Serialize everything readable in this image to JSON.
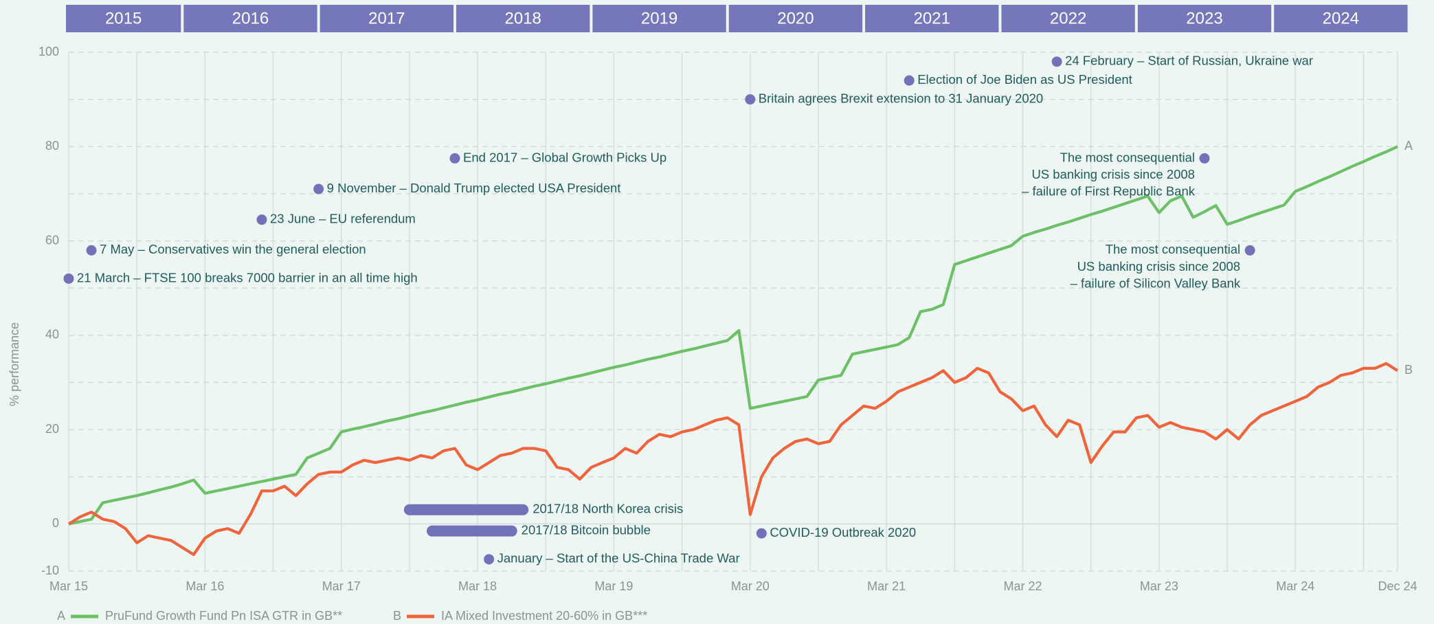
{
  "chart_data": {
    "type": "line",
    "y_label": "% performance",
    "year_bands": [
      "2015",
      "2016",
      "2017",
      "2018",
      "2019",
      "2020",
      "2021",
      "2022",
      "2023",
      "2024"
    ],
    "x": [
      "2015-03",
      "2015-04",
      "2015-05",
      "2015-06",
      "2015-07",
      "2015-08",
      "2015-09",
      "2015-10",
      "2015-11",
      "2015-12",
      "2016-01",
      "2016-02",
      "2016-03",
      "2016-04",
      "2016-05",
      "2016-06",
      "2016-07",
      "2016-08",
      "2016-09",
      "2016-10",
      "2016-11",
      "2016-12",
      "2017-01",
      "2017-02",
      "2017-03",
      "2017-04",
      "2017-05",
      "2017-06",
      "2017-07",
      "2017-08",
      "2017-09",
      "2017-10",
      "2017-11",
      "2017-12",
      "2018-01",
      "2018-02",
      "2018-03",
      "2018-04",
      "2018-05",
      "2018-06",
      "2018-07",
      "2018-08",
      "2018-09",
      "2018-10",
      "2018-11",
      "2018-12",
      "2019-01",
      "2019-02",
      "2019-03",
      "2019-04",
      "2019-05",
      "2019-06",
      "2019-07",
      "2019-08",
      "2019-09",
      "2019-10",
      "2019-11",
      "2019-12",
      "2020-01",
      "2020-02",
      "2020-03",
      "2020-04",
      "2020-05",
      "2020-06",
      "2020-07",
      "2020-08",
      "2020-09",
      "2020-10",
      "2020-11",
      "2020-12",
      "2021-01",
      "2021-02",
      "2021-03",
      "2021-04",
      "2021-05",
      "2021-06",
      "2021-07",
      "2021-08",
      "2021-09",
      "2021-10",
      "2021-11",
      "2021-12",
      "2022-01",
      "2022-02",
      "2022-03",
      "2022-04",
      "2022-05",
      "2022-06",
      "2022-07",
      "2022-08",
      "2022-09",
      "2022-10",
      "2022-11",
      "2022-12",
      "2023-01",
      "2023-02",
      "2023-03",
      "2023-04",
      "2023-05",
      "2023-06",
      "2023-07",
      "2023-08",
      "2023-09",
      "2023-10",
      "2023-11",
      "2023-12",
      "2024-01",
      "2024-02",
      "2024-03",
      "2024-04",
      "2024-05",
      "2024-06",
      "2024-07",
      "2024-08",
      "2024-09",
      "2024-10",
      "2024-11",
      "2024-12"
    ],
    "series": [
      {
        "label": "A",
        "name": "PruFund Growth Fund Pn ISA GTR in GB**",
        "color": "#6cc066",
        "values": [
          0,
          0.5,
          1,
          4.5,
          5,
          5.5,
          6,
          6.6,
          7.2,
          7.8,
          8.5,
          9.3,
          6.5,
          7,
          7.5,
          8,
          8.5,
          9,
          9.5,
          10,
          10.5,
          14,
          15,
          16,
          19.5,
          20.1,
          20.6,
          21.2,
          21.8,
          22.3,
          22.9,
          23.5,
          24.0,
          24.6,
          25.2,
          25.8,
          26.3,
          26.9,
          27.5,
          28.0,
          28.6,
          29.2,
          29.7,
          30.3,
          30.9,
          31.4,
          32.0,
          32.6,
          33.2,
          33.7,
          34.3,
          34.9,
          35.4,
          36.0,
          36.6,
          37.1,
          37.7,
          38.3,
          38.9,
          41,
          24.5,
          25,
          25.5,
          26,
          26.5,
          27,
          30.5,
          31,
          31.5,
          36,
          36.5,
          37,
          37.5,
          38,
          39.5,
          45,
          45.5,
          46.5,
          55,
          55.8,
          56.6,
          57.4,
          58.2,
          59,
          61,
          61.8,
          62.5,
          63.3,
          64,
          64.8,
          65.6,
          66.3,
          67.1,
          67.9,
          68.7,
          69.5,
          66,
          68.5,
          69.5,
          65,
          66.2,
          67.5,
          63.5,
          64.3,
          65.2,
          66,
          66.8,
          67.6,
          70.5,
          71.5,
          72.6,
          73.6,
          74.7,
          75.8,
          76.8,
          77.9,
          78.9,
          80
        ]
      },
      {
        "label": "B",
        "name": "IA Mixed Investment 20-60% in GB***",
        "color": "#f0643c",
        "values": [
          0,
          1.5,
          2.5,
          1,
          0.5,
          -1,
          -4,
          -2.5,
          -3,
          -3.5,
          -5,
          -6.5,
          -3,
          -1.5,
          -1,
          -2,
          2,
          7,
          7,
          8,
          6,
          8.5,
          10.5,
          11,
          11,
          12.5,
          13.5,
          13,
          13.5,
          14,
          13.5,
          14.5,
          14,
          15.5,
          16,
          12.5,
          11.5,
          13,
          14.5,
          15,
          16,
          16,
          15.5,
          12,
          11.5,
          9.5,
          12,
          13,
          14,
          16,
          15,
          17.5,
          19,
          18.5,
          19.5,
          20,
          21,
          22,
          22.5,
          21,
          2,
          10,
          14,
          16,
          17.5,
          18,
          17,
          17.5,
          21,
          23,
          25,
          24.5,
          26,
          28,
          29,
          30,
          31,
          32.5,
          30,
          31,
          33,
          32,
          28,
          26.5,
          24,
          25,
          21,
          18.5,
          22,
          21,
          13,
          16.5,
          19.5,
          19.5,
          22.5,
          23,
          20.5,
          21.5,
          20.5,
          20,
          19.5,
          18,
          20,
          18,
          21,
          23,
          24,
          25,
          26,
          27,
          29,
          30,
          31.5,
          32,
          33,
          33,
          34,
          32.5
        ]
      }
    ],
    "xlim": [
      "2015-03",
      "2024-12"
    ],
    "xticks": [
      {
        "value": "2015-03",
        "label": "Mar 15"
      },
      {
        "value": "2016-03",
        "label": "Mar 16"
      },
      {
        "value": "2017-03",
        "label": "Mar 17"
      },
      {
        "value": "2018-03",
        "label": "Mar 18"
      },
      {
        "value": "2019-03",
        "label": "Mar 19"
      },
      {
        "value": "2020-03",
        "label": "Mar 20"
      },
      {
        "value": "2021-03",
        "label": "Mar 21"
      },
      {
        "value": "2022-03",
        "label": "Mar 22"
      },
      {
        "value": "2023-03",
        "label": "Mar 23"
      },
      {
        "value": "2024-03",
        "label": "Mar 24"
      },
      {
        "value": "2024-12",
        "label": "Dec 24"
      }
    ],
    "xminorticks": [
      "2015-09",
      "2016-09",
      "2017-09",
      "2018-09",
      "2019-09",
      "2020-09",
      "2021-09",
      "2022-09",
      "2023-09",
      "2024-09"
    ],
    "ylim": [
      -10,
      100
    ],
    "yticks": [
      -10,
      0,
      20,
      40,
      60,
      80,
      100
    ],
    "yminorticks": [
      10,
      30,
      50,
      70,
      90
    ],
    "grid": true,
    "marker_color": "#7272b8",
    "annotations": [
      {
        "x": "2015-03",
        "y": 52,
        "text": [
          "21 March – FTSE 100 breaks 7000 barrier in an all time high"
        ]
      },
      {
        "x": "2015-05",
        "y": 58,
        "text": [
          "7 May – Conservatives win the general election"
        ]
      },
      {
        "x": "2016-08",
        "y": 64.5,
        "text": [
          "23 June – EU referendum"
        ]
      },
      {
        "x": "2017-01",
        "y": 71,
        "text": [
          "9 November – Donald Trump elected USA President"
        ]
      },
      {
        "x": "2018-01",
        "y": 77.5,
        "text": [
          "End 2017 – Global Growth Picks Up"
        ]
      },
      {
        "x": "2020-03",
        "y": 90,
        "text": [
          "Britain agrees Brexit extension to 31 January 2020"
        ]
      },
      {
        "x": "2021-05",
        "y": 94,
        "text": [
          "Election of Joe Biden as US President"
        ]
      },
      {
        "x": "2022-06",
        "y": 98,
        "text": [
          "24 February – Start of Russian, Ukraine war"
        ]
      },
      {
        "x": "2023-07",
        "y": 77.5,
        "text": [
          "The most consequential",
          "US banking crisis since 2008",
          "– failure of First Republic Bank"
        ]
      },
      {
        "x": "2023-11",
        "y": 58,
        "text": [
          "The most consequential",
          "US banking crisis since 2008",
          "– failure of Silicon Valley Bank"
        ]
      },
      {
        "x": "2020-04",
        "y": -2,
        "text": [
          "COVID-19 Outbreak 2020"
        ]
      },
      {
        "x": "2018-04",
        "y": -7.5,
        "text": [
          "January – Start of the US-China Trade War"
        ]
      }
    ],
    "ranges": [
      {
        "start": "2017-09",
        "end": "2018-07",
        "y": 3,
        "text": "2017/18 North Korea crisis"
      },
      {
        "start": "2017-11",
        "end": "2018-06",
        "y": -1.5,
        "text": "2017/18 Bitcoin bubble"
      }
    ]
  }
}
